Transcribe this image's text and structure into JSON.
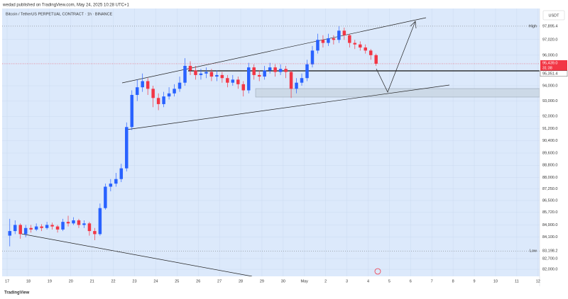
{
  "header": {
    "publisher": "wedad published on TradingView.com, May 24, 2025 10:28 UTC+1"
  },
  "footer": {
    "brand": "TradingView"
  },
  "chart_data": {
    "type": "candlestick",
    "title": "Bitcoin / TetherUS PERPETUAL CONTRACT · 1h · BINANCE",
    "axis_unit": "USDT",
    "up_color": "#2962ff",
    "down_color": "#f23645",
    "grid": true,
    "open": [
      84200,
      84500,
      84900,
      84300,
      84700,
      84600,
      84800,
      84700,
      84900,
      84800,
      84600,
      85100,
      85000,
      85200,
      84900,
      85000,
      84500,
      84300,
      86000,
      87400,
      87600,
      87900,
      88600,
      91300,
      93400,
      93900,
      94300,
      93800,
      93200,
      92800,
      93300,
      93500,
      93800,
      94200,
      95300,
      95000,
      94700,
      94800,
      94900,
      94600,
      94700,
      94500,
      94200,
      94400,
      94100,
      93700,
      95200,
      94700,
      94600,
      95000,
      95200,
      94900,
      95100,
      94900,
      93800,
      94200,
      94500,
      95400,
      96300,
      97000,
      96800,
      97100,
      97000,
      97600,
      97300,
      96800,
      96700,
      96500,
      96300,
      96000
    ],
    "high": [
      85300,
      85200,
      85000,
      84900,
      84900,
      85000,
      84950,
      85100,
      85050,
      84900,
      85300,
      85500,
      85400,
      85300,
      85200,
      85100,
      84700,
      86300,
      87600,
      87900,
      88300,
      88900,
      91600,
      93700,
      94400,
      94800,
      94500,
      94000,
      93500,
      93600,
      93900,
      94100,
      94600,
      95800,
      95600,
      95300,
      95100,
      95200,
      95100,
      95000,
      94900,
      94700,
      94700,
      94600,
      94300,
      95500,
      95400,
      95000,
      95300,
      95500,
      95400,
      95400,
      95300,
      95000,
      94500,
      94800,
      95700,
      96600,
      97400,
      97300,
      97400,
      97300,
      97900,
      97800,
      97400,
      97000,
      96900,
      96700,
      96400,
      96100
    ],
    "low": [
      83500,
      84300,
      84000,
      84100,
      84400,
      84500,
      84500,
      84600,
      84600,
      84400,
      84500,
      84800,
      84900,
      84700,
      84700,
      84200,
      83900,
      84200,
      85900,
      87100,
      87400,
      87700,
      88400,
      91100,
      93000,
      93600,
      93400,
      92600,
      92400,
      92600,
      93100,
      93300,
      93600,
      94000,
      94700,
      94400,
      94400,
      94500,
      94300,
      94300,
      94200,
      93900,
      94000,
      93800,
      93300,
      93500,
      94400,
      94300,
      94400,
      94800,
      94600,
      94700,
      94500,
      93200,
      93500,
      94000,
      94300,
      95200,
      96100,
      96500,
      96600,
      96700,
      96800,
      97000,
      96500,
      96400,
      96300,
      96100,
      95700,
      95300
    ],
    "close": [
      84500,
      84900,
      84300,
      84700,
      84600,
      84800,
      84700,
      84900,
      84800,
      84600,
      85100,
      85000,
      85200,
      84900,
      85000,
      84500,
      84300,
      86000,
      87400,
      87600,
      87900,
      88600,
      91300,
      93400,
      93900,
      94300,
      93800,
      93200,
      92800,
      93300,
      93500,
      93800,
      94200,
      95300,
      95000,
      94700,
      94800,
      94900,
      94600,
      94700,
      94500,
      94200,
      94400,
      94100,
      93700,
      95200,
      94700,
      94600,
      95000,
      95200,
      94900,
      95100,
      94900,
      93800,
      94200,
      94500,
      95400,
      96300,
      97000,
      96800,
      97100,
      97000,
      97600,
      97300,
      96800,
      96700,
      96500,
      96300,
      96000,
      95439
    ],
    "xlim": [
      -0.94,
      100.3
    ],
    "xticks": [
      {
        "value": 0,
        "label": "17"
      },
      {
        "value": 4,
        "label": "18"
      },
      {
        "value": 8,
        "label": "19"
      },
      {
        "value": 12,
        "label": "20"
      },
      {
        "value": 16,
        "label": "21"
      },
      {
        "value": 20,
        "label": "22"
      },
      {
        "value": 24,
        "label": "23"
      },
      {
        "value": 28,
        "label": "24"
      },
      {
        "value": 32,
        "label": "25"
      },
      {
        "value": 36,
        "label": "26"
      },
      {
        "value": 40,
        "label": "27"
      },
      {
        "value": 44,
        "label": "28"
      },
      {
        "value": 48,
        "label": "29"
      },
      {
        "value": 52,
        "label": "30"
      },
      {
        "value": 56,
        "label": "May"
      },
      {
        "value": 60,
        "label": "2"
      },
      {
        "value": 64,
        "label": "3"
      },
      {
        "value": 68,
        "label": "4"
      },
      {
        "value": 72,
        "label": "5"
      },
      {
        "value": 76,
        "label": "6"
      },
      {
        "value": 80,
        "label": "7"
      },
      {
        "value": 84,
        "label": "8"
      },
      {
        "value": 88,
        "label": "9"
      },
      {
        "value": 92,
        "label": "10"
      },
      {
        "value": 96,
        "label": "11"
      },
      {
        "value": 100,
        "label": "12"
      }
    ],
    "ylim": [
      81540,
      99050
    ],
    "yticks": [
      {
        "value": 97020,
        "label": "97,020.0"
      },
      {
        "value": 96000,
        "label": "96,000.0"
      },
      {
        "value": 94000,
        "label": "94,000.0"
      },
      {
        "value": 93000,
        "label": "93,000.0"
      },
      {
        "value": 92000,
        "label": "92,000.0"
      },
      {
        "value": 91200,
        "label": "91,200.0"
      },
      {
        "value": 90400,
        "label": "90,400.0"
      },
      {
        "value": 89600,
        "label": "89,600.0"
      },
      {
        "value": 88800,
        "label": "88,800.0"
      },
      {
        "value": 88000,
        "label": "88,000.0"
      },
      {
        "value": 87250,
        "label": "87,250.0"
      },
      {
        "value": 86500,
        "label": "86,500.0"
      },
      {
        "value": 85720,
        "label": "85,720.0"
      },
      {
        "value": 84900,
        "label": "84,900.0"
      },
      {
        "value": 84100,
        "label": "84,100.0"
      },
      {
        "value": 82700,
        "label": "82,700.0"
      },
      {
        "value": 82000,
        "label": "82,000.0"
      }
    ],
    "high_line": {
      "name": "High",
      "value": 97895.4,
      "label": "97,895.4"
    },
    "low_line": {
      "name": "Low",
      "value": 83198.2,
      "label": "83,198.2"
    },
    "current_price": {
      "value": 95439,
      "label": "95,439.0",
      "countdown": "31:38"
    },
    "level_price": {
      "value": 95351.4,
      "label": "95,351.4"
    }
  }
}
